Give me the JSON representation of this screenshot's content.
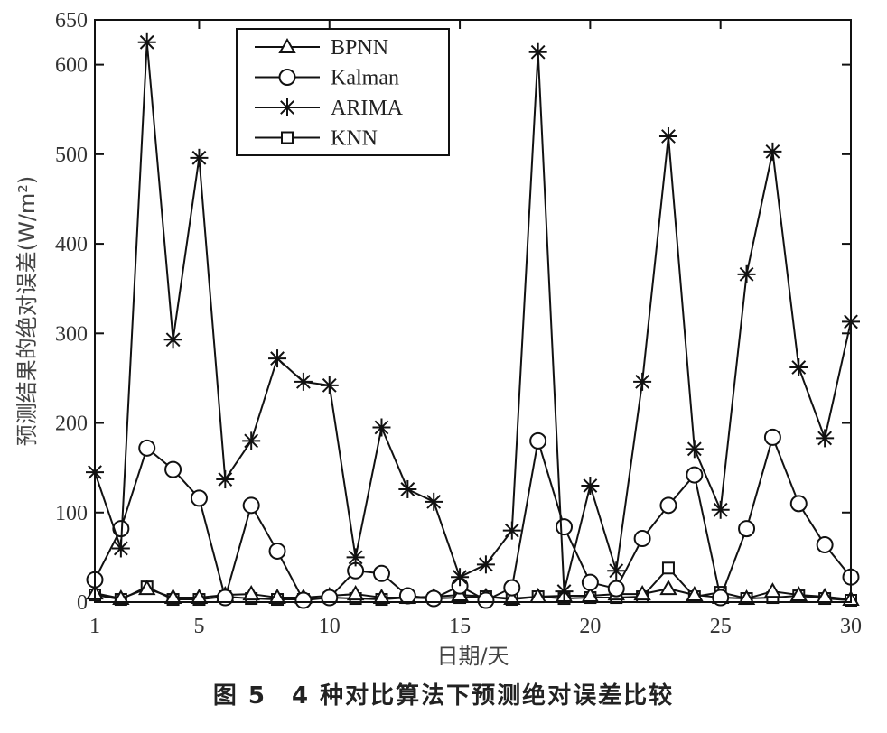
{
  "chart_data": {
    "type": "line",
    "xlabel": "日期/天",
    "ylabel": "预测结果的绝对误差(W/m²)",
    "xlim": [
      1,
      30
    ],
    "ylim": [
      0,
      650
    ],
    "xticks": [
      1,
      5,
      10,
      15,
      20,
      25,
      30
    ],
    "yticks": [
      0,
      100,
      200,
      300,
      400,
      500,
      600,
      650
    ],
    "grid": false,
    "legend_position": "top-left",
    "x": [
      1,
      2,
      3,
      4,
      5,
      6,
      7,
      8,
      9,
      10,
      11,
      12,
      13,
      14,
      15,
      16,
      17,
      18,
      19,
      20,
      21,
      22,
      23,
      24,
      25,
      26,
      27,
      28,
      29,
      30
    ],
    "series": [
      {
        "name": "BPNN",
        "marker": "triangle",
        "values": [
          10,
          4,
          15,
          5,
          5,
          8,
          9,
          5,
          5,
          7,
          9,
          5,
          5,
          6,
          8,
          6,
          4,
          6,
          7,
          7,
          9,
          9,
          15,
          8,
          5,
          4,
          12,
          8,
          6,
          3
        ]
      },
      {
        "name": "Kalman",
        "marker": "circle",
        "values": [
          25,
          82,
          172,
          148,
          116,
          5,
          108,
          57,
          2,
          5,
          35,
          32,
          7,
          4,
          18,
          2,
          16,
          180,
          84,
          22,
          15,
          71,
          108,
          142,
          5,
          82,
          184,
          110,
          64,
          28
        ]
      },
      {
        "name": "ARIMA",
        "marker": "star",
        "values": [
          145,
          60,
          625,
          293,
          496,
          137,
          180,
          272,
          246,
          242,
          50,
          195,
          126,
          112,
          28,
          42,
          80,
          614,
          12,
          130,
          35,
          246,
          520,
          171,
          103,
          366,
          503,
          262,
          183,
          313
        ]
      },
      {
        "name": "KNN",
        "marker": "square",
        "values": [
          8,
          3,
          17,
          3,
          3,
          6,
          4,
          3,
          3,
          5,
          4,
          3,
          5,
          4,
          5,
          6,
          3,
          6,
          4,
          5,
          5,
          6,
          38,
          6,
          11,
          4,
          5,
          7,
          4,
          2
        ]
      }
    ]
  },
  "caption": "图 5　4 种对比算法下预测绝对误差比较"
}
